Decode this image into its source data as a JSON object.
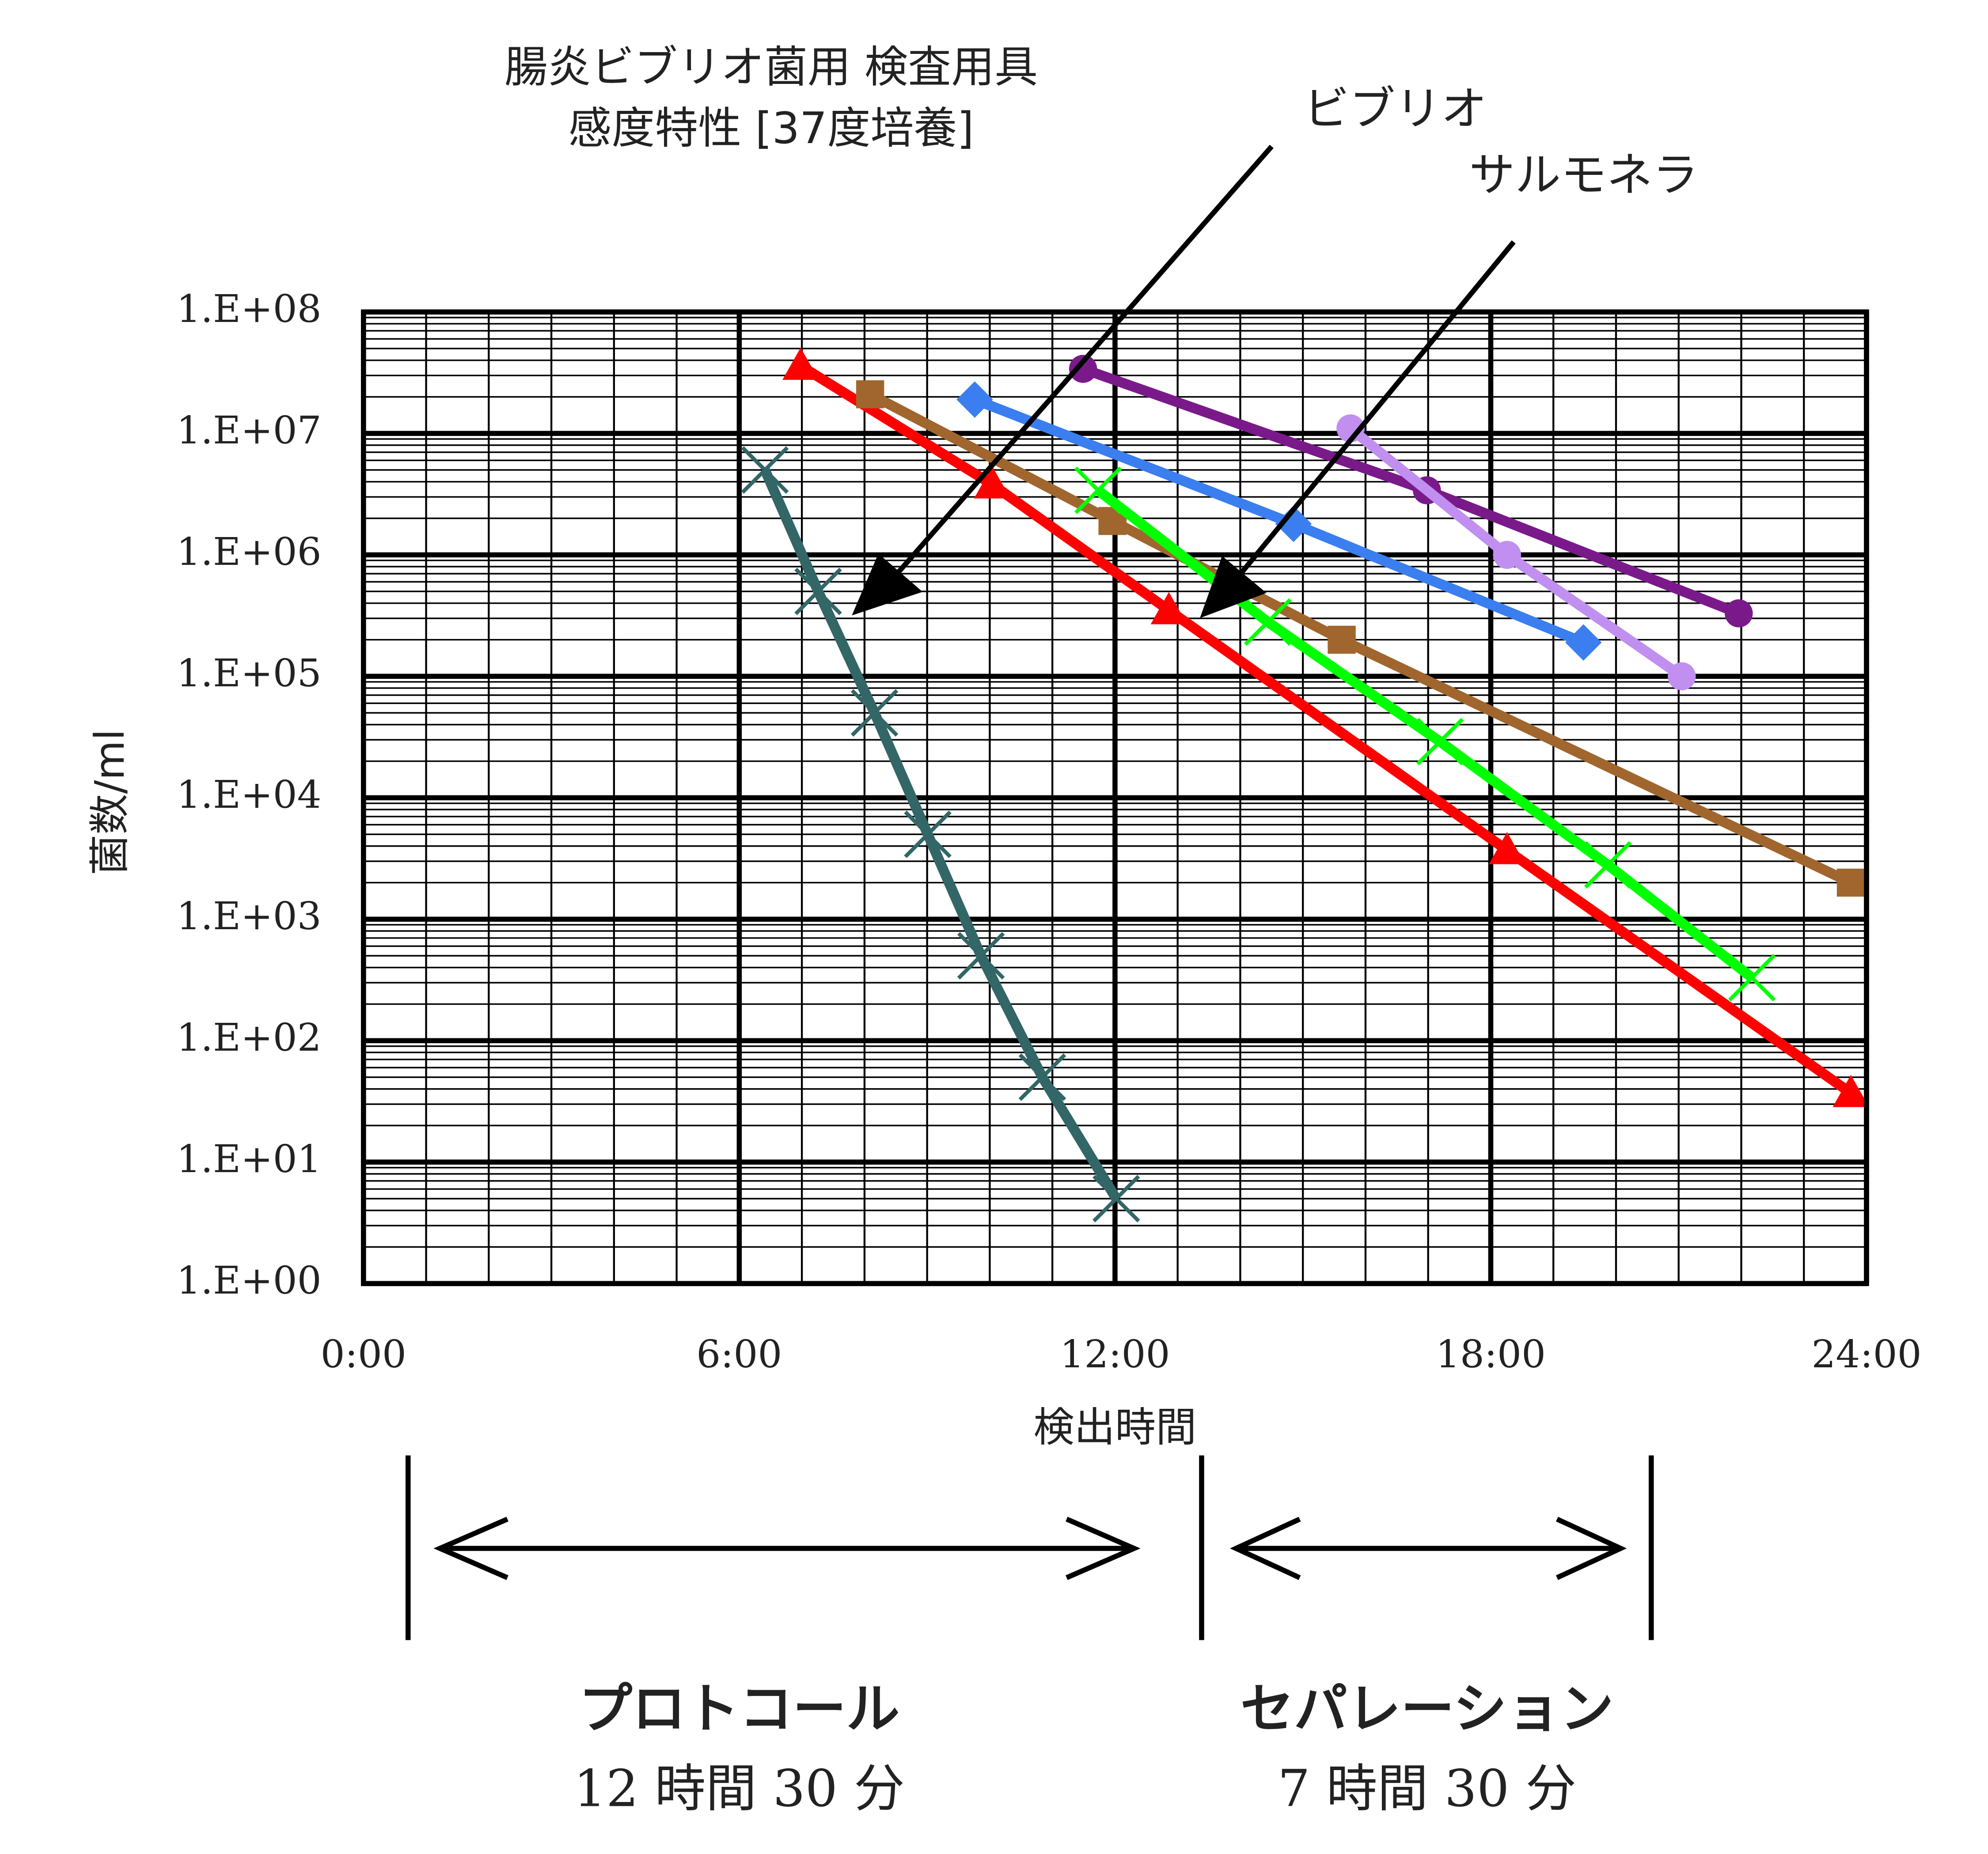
{
  "chart_data": {
    "type": "line",
    "title": "腸炎ビブリオ菌用 検査用具",
    "subtitle": "感度特性 [37度培養]",
    "x_label": "検出時間",
    "y_label": "菌数/ml",
    "log_y": true,
    "grid": true,
    "minor_grid": true,
    "xlim": [
      0,
      24
    ],
    "xticks": [
      {
        "value": 0,
        "label": "0:00"
      },
      {
        "value": 6,
        "label": "6:00"
      },
      {
        "value": 12,
        "label": "12:00"
      },
      {
        "value": 18,
        "label": "18:00"
      },
      {
        "value": 24,
        "label": "24:00"
      }
    ],
    "ylim": [
      1,
      100000000
    ],
    "yticks": [
      {
        "value": 1,
        "label": "1.E+00"
      },
      {
        "value": 10,
        "label": "1.E+01"
      },
      {
        "value": 100,
        "label": "1.E+02"
      },
      {
        "value": 1000,
        "label": "1.E+03"
      },
      {
        "value": 10000,
        "label": "1.E+04"
      },
      {
        "value": 100000,
        "label": "1.E+05"
      },
      {
        "value": 1000000,
        "label": "1.E+06"
      },
      {
        "value": 10000000,
        "label": "1.E+07"
      },
      {
        "value": 100000000,
        "label": "1.E+08"
      }
    ],
    "series": [
      {
        "color": "#336666",
        "marker": "x",
        "x": [
          6.41,
          7.26,
          8.16,
          9.01,
          9.86,
          10.84,
          12.02
        ],
        "values": [
          5000000,
          500000,
          50000,
          5000,
          500,
          50,
          5
        ]
      },
      {
        "color": "#ff0000",
        "marker": "triangle",
        "x": [
          6.98,
          10.04,
          12.86,
          18.26,
          23.75
        ],
        "values": [
          36000000,
          3800000,
          350000,
          3700,
          37
        ]
      },
      {
        "color": "#a0662e",
        "marker": "square",
        "x": [
          8.09,
          11.96,
          15.62,
          23.75
        ],
        "values": [
          21000000,
          1900000,
          200000,
          2000
        ]
      },
      {
        "color": "#3a7ef0",
        "marker": "diamond",
        "x": [
          9.76,
          14.85,
          19.48
        ],
        "values": [
          19000000,
          1800000,
          190000
        ]
      },
      {
        "color": "#7a1a8a",
        "marker": "circle",
        "x": [
          11.49,
          16.98,
          21.96
        ],
        "values": [
          34000000,
          3400000,
          330000
        ]
      },
      {
        "color": "#c08ff0",
        "marker": "circle",
        "x": [
          15.76,
          18.26,
          21.05
        ],
        "values": [
          11000000,
          1000000,
          100000
        ]
      },
      {
        "color": "#00ff00",
        "marker": "x",
        "x": [
          11.73,
          14.44,
          17.19,
          19.87,
          22.17
        ],
        "values": [
          3400000,
          280000,
          29000,
          2800,
          330
        ]
      }
    ],
    "annotations": [
      "ビブリオ",
      "サルモネラ",
      "プロトコール",
      "12 時間 30 分",
      "セパレーション",
      "7 時間 30 分"
    ]
  }
}
